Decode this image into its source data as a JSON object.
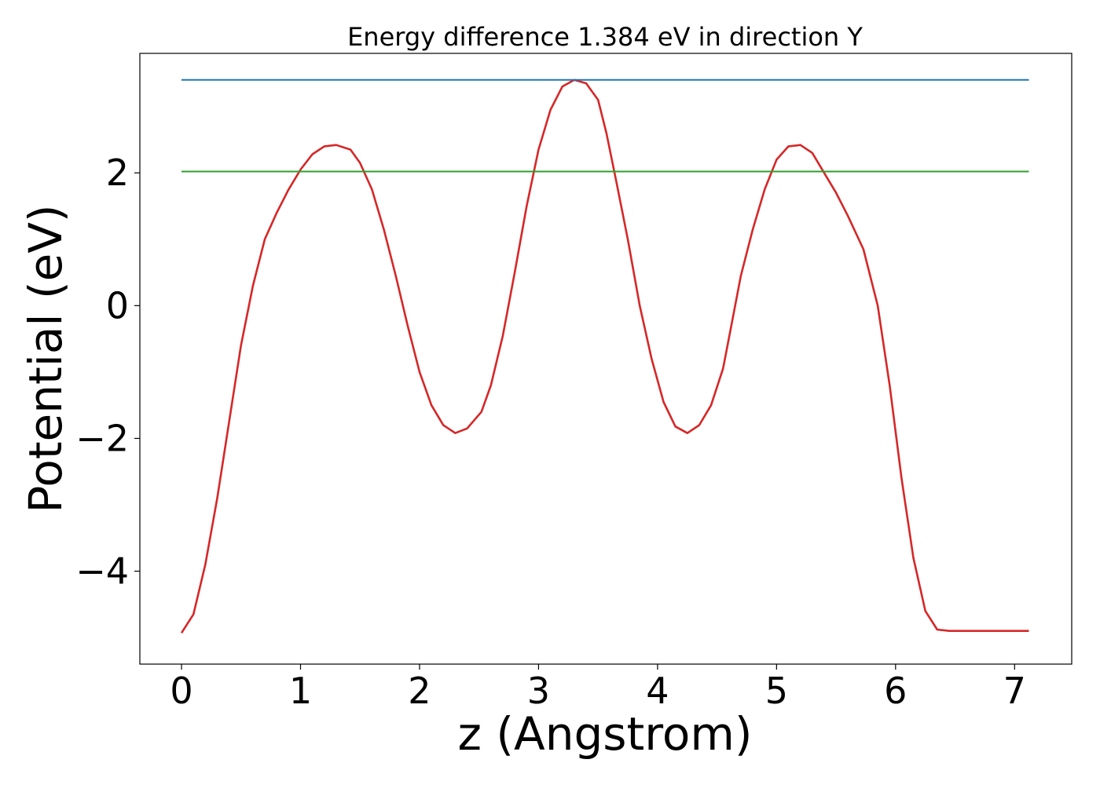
{
  "chart_data": {
    "type": "line",
    "title": "Energy difference 1.384 eV in direction Y",
    "xlabel": "z (Angstrom)",
    "ylabel": "Potential (eV)",
    "xlim": [
      -0.35,
      7.48
    ],
    "ylim": [
      -5.4,
      3.8
    ],
    "xticks": [
      0,
      1,
      2,
      3,
      4,
      5,
      6,
      7
    ],
    "xtick_labels": [
      "0",
      "1",
      "2",
      "3",
      "4",
      "5",
      "6",
      "7"
    ],
    "yticks": [
      -4,
      -2,
      0,
      2
    ],
    "ytick_labels": [
      "−4",
      "−2",
      "0",
      "2"
    ],
    "grid": false,
    "legend": "none",
    "series": [
      {
        "color": "#d62728",
        "x": [
          0.0,
          0.1,
          0.2,
          0.3,
          0.4,
          0.5,
          0.6,
          0.7,
          0.8,
          0.9,
          1.0,
          1.1,
          1.2,
          1.3,
          1.42,
          1.5,
          1.6,
          1.7,
          1.8,
          1.9,
          2.0,
          2.1,
          2.2,
          2.3,
          2.4,
          2.52,
          2.6,
          2.7,
          2.8,
          2.9,
          3.0,
          3.1,
          3.2,
          3.3,
          3.4,
          3.5,
          3.57,
          3.65,
          3.75,
          3.85,
          3.95,
          4.05,
          4.15,
          4.25,
          4.35,
          4.45,
          4.55,
          4.62,
          4.7,
          4.8,
          4.9,
          5.0,
          5.1,
          5.2,
          5.3,
          5.4,
          5.5,
          5.6,
          5.73,
          5.85,
          5.95,
          6.05,
          6.15,
          6.25,
          6.35,
          6.45,
          6.55,
          6.65,
          6.75,
          6.85,
          6.95,
          7.05,
          7.12
        ],
        "y": [
          -4.93,
          -4.65,
          -3.9,
          -2.9,
          -1.75,
          -0.6,
          0.3,
          1.0,
          1.4,
          1.75,
          2.05,
          2.28,
          2.4,
          2.42,
          2.35,
          2.15,
          1.75,
          1.15,
          0.45,
          -0.3,
          -1.0,
          -1.5,
          -1.8,
          -1.92,
          -1.85,
          -1.6,
          -1.2,
          -0.45,
          0.5,
          1.5,
          2.35,
          2.95,
          3.3,
          3.4,
          3.35,
          3.1,
          2.6,
          1.9,
          1.0,
          0.0,
          -0.8,
          -1.45,
          -1.82,
          -1.92,
          -1.8,
          -1.5,
          -0.95,
          -0.3,
          0.45,
          1.15,
          1.75,
          2.2,
          2.4,
          2.42,
          2.3,
          2.0,
          1.7,
          1.35,
          0.85,
          0.0,
          -1.2,
          -2.6,
          -3.8,
          -4.6,
          -4.88,
          -4.9,
          -4.9,
          -4.9,
          -4.9,
          -4.9,
          -4.9,
          -4.9,
          -4.9
        ]
      },
      {
        "color": "#1f77b4",
        "x": [
          0.0,
          7.12
        ],
        "y": [
          3.4,
          3.4
        ]
      },
      {
        "color": "#2ca02c",
        "x": [
          0.0,
          7.12
        ],
        "y": [
          2.02,
          2.02
        ]
      }
    ]
  }
}
